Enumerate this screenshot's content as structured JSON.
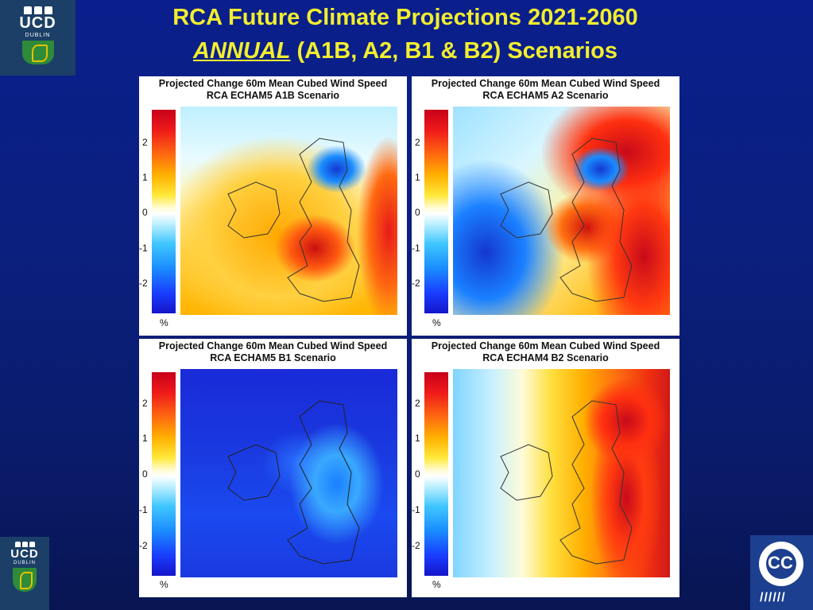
{
  "title": {
    "line1": "RCA Future Climate Projections 2021-2060",
    "line2_em": "ANNUAL",
    "line2_rest": " (A1B, A2, B1 & B2) Scenarios"
  },
  "logo_ucd": {
    "word": "UCD",
    "sub": "DUBLIN"
  },
  "logo_cc": {
    "text": "C C",
    "rain": "//////"
  },
  "colorbar": {
    "ticks": [
      "2",
      "1",
      "0",
      "-1",
      "-2"
    ],
    "unit": "%"
  },
  "panels": [
    {
      "line1": "Projected Change 60m Mean Cubed Wind Speed",
      "line2": "RCA ECHAM5 A1B Scenario",
      "scheme": "warm"
    },
    {
      "line1": "Projected Change 60m Mean Cubed Wind Speed",
      "line2": "RCA ECHAM5 A2 Scenario",
      "scheme": "mixed"
    },
    {
      "line1": "Projected Change 60m Mean Cubed Wind Speed",
      "line2": "RCA ECHAM5 B1 Scenario",
      "scheme": "cold"
    },
    {
      "line1": "Projected Change 60m Mean Cubed Wind Speed",
      "line2": "RCA ECHAM4 B2 Scenario",
      "scheme": "gradient"
    }
  ]
}
